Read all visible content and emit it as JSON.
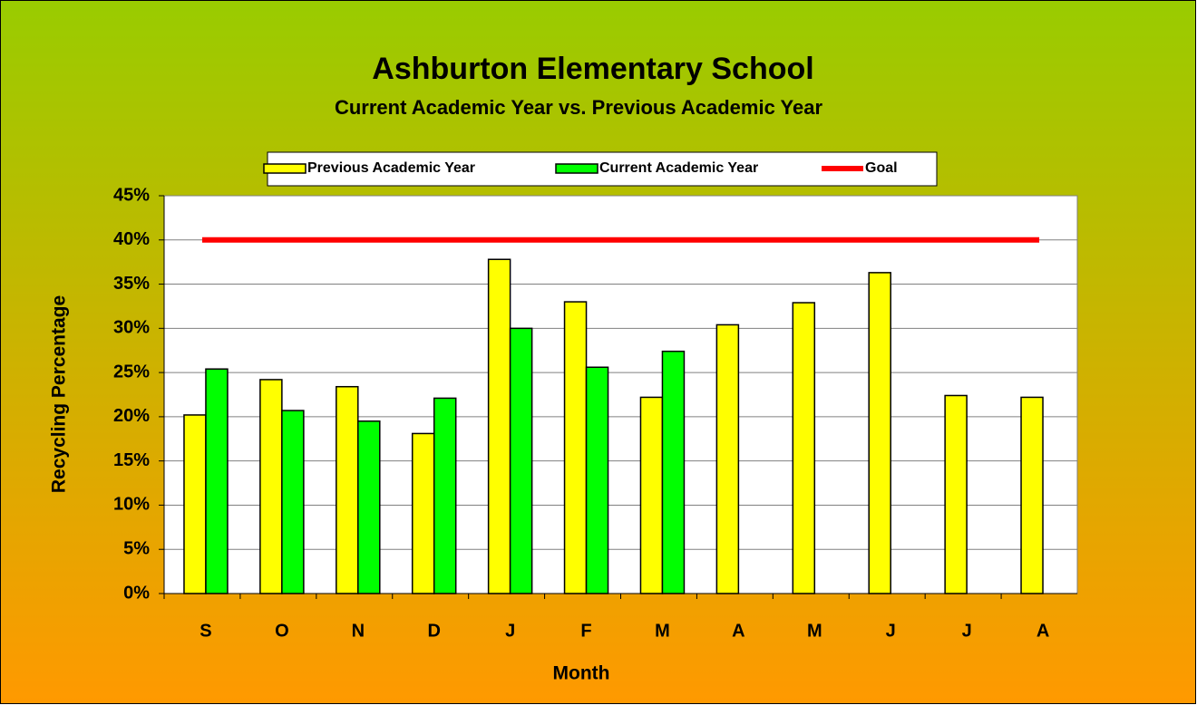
{
  "chart_data": {
    "type": "bar",
    "title": "Ashburton Elementary School",
    "subtitle": "Current Academic Year vs. Previous Academic Year",
    "xlabel": "Month",
    "ylabel": "Recycling Percentage",
    "categories": [
      "S",
      "O",
      "N",
      "D",
      "J",
      "F",
      "M",
      "A",
      "M",
      "J",
      "J",
      "A"
    ],
    "series": [
      {
        "name": "Previous Academic Year",
        "color": "#ffff00",
        "type": "bar",
        "values": [
          20.2,
          24.2,
          23.4,
          18.1,
          37.8,
          33.0,
          22.2,
          30.4,
          32.9,
          36.3,
          22.4,
          22.2
        ]
      },
      {
        "name": "Current Academic Year",
        "color": "#00ff00",
        "type": "bar",
        "values": [
          25.4,
          20.7,
          19.5,
          22.1,
          30.0,
          25.6,
          27.4,
          null,
          null,
          null,
          null,
          null
        ]
      },
      {
        "name": "Goal",
        "color": "#ff0000",
        "type": "line",
        "values": [
          40,
          40,
          40,
          40,
          40,
          40,
          40,
          40,
          40,
          40,
          40,
          40
        ]
      }
    ],
    "ylim": [
      0,
      45
    ],
    "yticks": [
      {
        "value": 0,
        "label": "0%"
      },
      {
        "value": 5,
        "label": "5%"
      },
      {
        "value": 10,
        "label": "10%"
      },
      {
        "value": 15,
        "label": "15%"
      },
      {
        "value": 20,
        "label": "20%"
      },
      {
        "value": 25,
        "label": "25%"
      },
      {
        "value": 30,
        "label": "30%"
      },
      {
        "value": 35,
        "label": "35%"
      },
      {
        "value": 40,
        "label": "40%"
      },
      {
        "value": 45,
        "label": "45%"
      }
    ],
    "grid": true,
    "legend": "top"
  }
}
